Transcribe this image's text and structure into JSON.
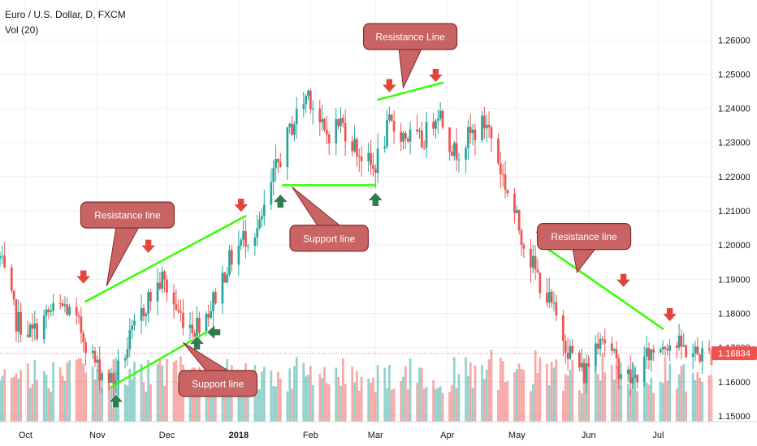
{
  "header": {
    "symbol_line": "Euro / U.S. Dollar, D, FXCM",
    "volume_line": "Vol (20)"
  },
  "price_tag": "1.16834",
  "colors": {
    "up": "#26a69a",
    "down": "#ef5350",
    "trend": "#33ff00",
    "arrow_down": "#e0463c",
    "arrow_up": "#2f7d4f",
    "callout_fill": "#c96464",
    "callout_stroke": "#8a2a2a",
    "price_tag": "#ef5350"
  },
  "chart_data": {
    "type": "candlestick",
    "title": "Euro / U.S. Dollar, D, FXCM",
    "volume_indicator": "Vol (20)",
    "y_ticks": [
      "1.26000",
      "1.25000",
      "1.24000",
      "1.23000",
      "1.22000",
      "1.21000",
      "1.20000",
      "1.19000",
      "1.18000",
      "1.17000",
      "1.16000",
      "1.15000"
    ],
    "y_values": [
      1.26,
      1.25,
      1.24,
      1.23,
      1.22,
      1.21,
      1.2,
      1.19,
      1.18,
      1.17,
      1.16,
      1.15
    ],
    "ylim": [
      1.1412,
      1.2717
    ],
    "x_ticks": [
      {
        "label": "Oct",
        "date": "2017-10-01"
      },
      {
        "label": "Nov",
        "date": "2017-11-01"
      },
      {
        "label": "Dec",
        "date": "2017-12-01"
      },
      {
        "label": "2018",
        "date": "2018-01-01"
      },
      {
        "label": "Feb",
        "date": "2018-02-01"
      },
      {
        "label": "Mar",
        "date": "2018-03-01"
      },
      {
        "label": "Apr",
        "date": "2018-04-01"
      },
      {
        "label": "May",
        "date": "2018-05-01"
      },
      {
        "label": "Jun",
        "date": "2018-06-01"
      },
      {
        "label": "Jul",
        "date": "2018-07-01"
      }
    ],
    "xlim": [
      "2017-09-20",
      "2018-07-24"
    ],
    "last_price": 1.16834,
    "closes": [
      [
        "2017-09-20",
        1.196
      ],
      [
        "2017-09-27",
        1.178
      ],
      [
        "2017-10-04",
        1.174
      ],
      [
        "2017-10-11",
        1.18
      ],
      [
        "2017-10-18",
        1.182
      ],
      [
        "2017-10-25",
        1.175
      ],
      [
        "2017-11-01",
        1.164
      ],
      [
        "2017-11-08",
        1.16
      ],
      [
        "2017-11-15",
        1.172
      ],
      [
        "2017-11-22",
        1.183
      ],
      [
        "2017-11-29",
        1.19
      ],
      [
        "2017-12-06",
        1.18
      ],
      [
        "2017-12-13",
        1.176
      ],
      [
        "2017-12-20",
        1.182
      ],
      [
        "2017-12-27",
        1.194
      ],
      [
        "2018-01-03",
        1.202
      ],
      [
        "2018-01-10",
        1.205
      ],
      [
        "2018-01-17",
        1.222
      ],
      [
        "2018-01-24",
        1.235
      ],
      [
        "2018-01-31",
        1.245
      ],
      [
        "2018-02-07",
        1.232
      ],
      [
        "2018-02-14",
        1.236
      ],
      [
        "2018-02-21",
        1.228
      ],
      [
        "2018-02-28",
        1.222
      ],
      [
        "2018-03-07",
        1.235
      ],
      [
        "2018-03-14",
        1.232
      ],
      [
        "2018-03-21",
        1.23
      ],
      [
        "2018-03-28",
        1.24
      ],
      [
        "2018-04-04",
        1.227
      ],
      [
        "2018-04-11",
        1.232
      ],
      [
        "2018-04-18",
        1.236
      ],
      [
        "2018-04-25",
        1.22
      ],
      [
        "2018-05-02",
        1.205
      ],
      [
        "2018-05-09",
        1.192
      ],
      [
        "2018-05-16",
        1.182
      ],
      [
        "2018-05-23",
        1.17
      ],
      [
        "2018-05-30",
        1.162
      ],
      [
        "2018-06-06",
        1.175
      ],
      [
        "2018-06-13",
        1.165
      ],
      [
        "2018-06-20",
        1.16
      ],
      [
        "2018-06-27",
        1.168
      ],
      [
        "2018-07-04",
        1.172
      ],
      [
        "2018-07-11",
        1.17
      ],
      [
        "2018-07-18",
        1.168
      ],
      [
        "2018-07-24",
        1.168
      ]
    ],
    "trendlines": [
      {
        "kind": "resistance",
        "from": [
          "2017-10-27",
          1.1835
        ],
        "to": [
          "2018-01-04",
          1.2085
        ]
      },
      {
        "kind": "support",
        "from": [
          "2017-11-07",
          1.1585
        ],
        "to": [
          "2017-12-18",
          1.1745
        ]
      },
      {
        "kind": "support",
        "from": [
          "2018-01-20",
          1.2175
        ],
        "to": [
          "2018-03-01",
          1.2175
        ]
      },
      {
        "kind": "resistance",
        "from": [
          "2018-03-02",
          1.2425
        ],
        "to": [
          "2018-03-30",
          1.2475
        ]
      },
      {
        "kind": "resistance",
        "from": [
          "2018-05-13",
          1.1995
        ],
        "to": [
          "2018-07-03",
          1.1755
        ]
      }
    ],
    "arrows": [
      {
        "dir": "down",
        "at": [
          "2017-10-26",
          1.1905
        ]
      },
      {
        "dir": "down",
        "at": [
          "2017-11-23",
          1.1995
        ]
      },
      {
        "dir": "down",
        "at": [
          "2018-01-02",
          1.2115
        ]
      },
      {
        "dir": "down",
        "at": [
          "2018-03-07",
          1.2465
        ]
      },
      {
        "dir": "down",
        "at": [
          "2018-03-27",
          1.2495
        ]
      },
      {
        "dir": "down",
        "at": [
          "2018-05-12",
          1.2035
        ]
      },
      {
        "dir": "down",
        "at": [
          "2018-06-16",
          1.1895
        ]
      },
      {
        "dir": "down",
        "at": [
          "2018-07-06",
          1.1795
        ]
      },
      {
        "dir": "up",
        "at": [
          "2017-11-09",
          1.1545
        ]
      },
      {
        "dir": "up",
        "at": [
          "2017-12-14",
          1.1715
        ]
      },
      {
        "dir": "left",
        "at": [
          "2017-12-21",
          1.1745
        ]
      },
      {
        "dir": "up",
        "at": [
          "2018-01-19",
          1.213
        ]
      },
      {
        "dir": "up",
        "at": [
          "2018-03-01",
          1.2135
        ]
      }
    ],
    "annotations": [
      {
        "text": "Resistance line",
        "box_center": [
          "2017-11-14",
          1.2088
        ],
        "pointer": [
          "2017-11-05",
          1.188
        ]
      },
      {
        "text": "Support line",
        "box_center": [
          "2018-02-09",
          1.202
        ],
        "pointer": [
          "2018-01-24",
          1.217
        ]
      },
      {
        "text": "Resistance Line",
        "box_center": [
          "2018-03-16",
          1.261
        ],
        "pointer": [
          "2018-03-13",
          1.246
        ]
      },
      {
        "text": "Support line",
        "box_center": [
          "2017-12-23",
          1.1595
        ],
        "pointer": [
          "2017-12-08",
          1.1715
        ]
      },
      {
        "text": "Resistance line",
        "box_center": [
          "2018-05-30",
          1.2025
        ],
        "pointer": [
          "2018-05-27",
          1.192
        ]
      }
    ]
  }
}
